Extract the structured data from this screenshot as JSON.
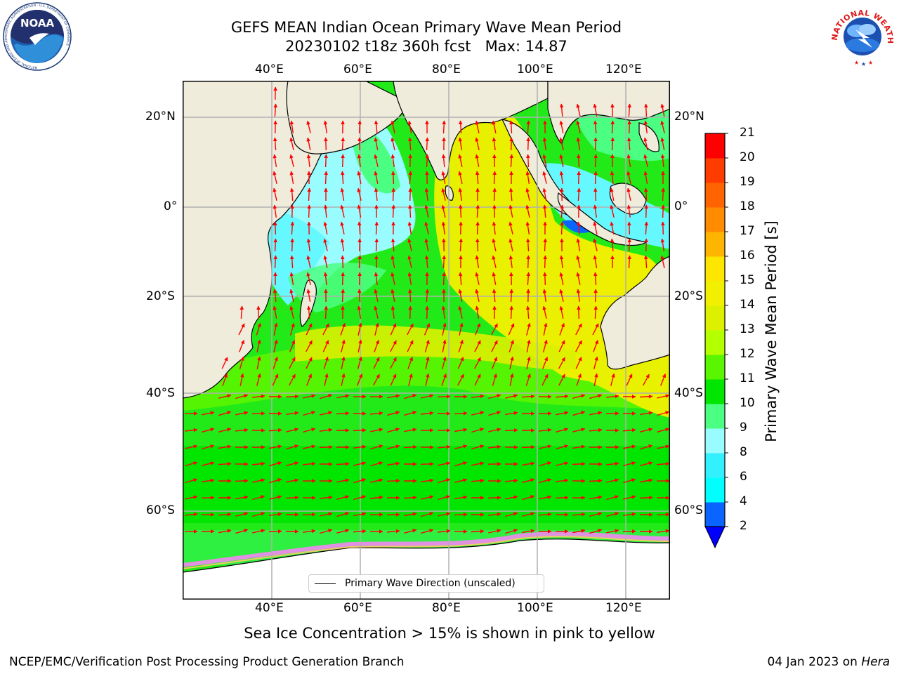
{
  "header": {
    "title_line1": "GEFS MEAN Indian Ocean Primary Wave Mean Period",
    "title_line2": "20230102 t18z 360h fcst   Max: 14.87"
  },
  "logos": {
    "noaa_text": "NOAA",
    "noaa_ring_text": "NATIONAL OCEANIC AND ATMOSPHERIC ADMINISTRATION · U.S. DEPARTMENT OF COMMERCE",
    "nws_ring_text": "NATIONAL WEATHER SERVICE"
  },
  "map": {
    "lon_labels": [
      "40°E",
      "60°E",
      "80°E",
      "100°E",
      "120°E"
    ],
    "lat_labels": [
      "20°N",
      "0°",
      "20°S",
      "40°S",
      "60°S"
    ],
    "legend_label": "Primary Wave Direction (unscaled)",
    "land_color": "#efecdc",
    "arrow_color": "#ff0000",
    "ice_colors": [
      "#ff80ff",
      "#ff66cc",
      "#ffcc66",
      "#ffff66"
    ]
  },
  "colorbar": {
    "title": "Primary Wave Mean Period [s]",
    "levels": [
      2,
      4,
      6,
      8,
      9,
      10,
      11,
      12,
      13,
      14,
      15,
      16,
      17,
      18,
      19,
      20,
      21
    ],
    "colors": [
      "#0a64ff",
      "#00ffff",
      "#33f0ff",
      "#99fcff",
      "#4bff82",
      "#00e600",
      "#5af500",
      "#b4ff00",
      "#dcf000",
      "#f0f000",
      "#ffe600",
      "#ffb400",
      "#ff8c00",
      "#ff6400",
      "#ff3c00",
      "#ff0000"
    ],
    "extend_min_color": "#0000ff"
  },
  "subtitle": "Sea Ice Concentration > 15% is shown in pink to yellow",
  "footer": {
    "left": "NCEP/EMC/Verification Post Processing Product Generation Branch",
    "right_date": "04 Jan 2023 on ",
    "right_host": "Hera"
  }
}
